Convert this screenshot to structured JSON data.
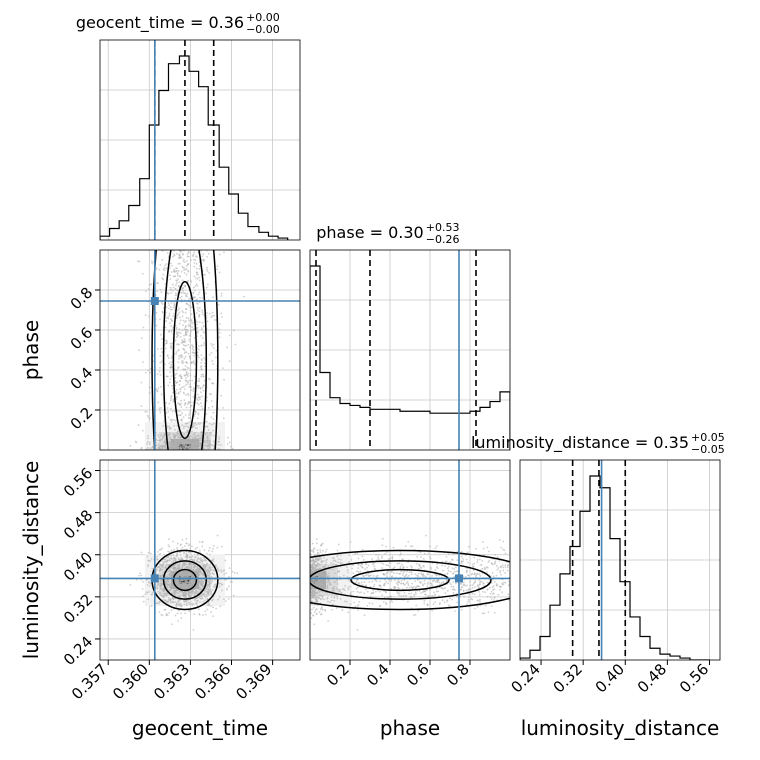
{
  "chart_data": {
    "type": "scatter",
    "subtype": "corner-plot",
    "params": [
      "geocent_time",
      "phase",
      "luminosity_distance"
    ],
    "axis_labels": {
      "geocent_time": "geocent_time",
      "phase": "phase",
      "luminosity_distance": "luminosity_distance"
    },
    "ranges": {
      "geocent_time": [
        0.3564,
        0.371
      ],
      "phase": [
        0.0,
        1.0
      ],
      "luminosity_distance": [
        0.2,
        0.58
      ]
    },
    "ticks": {
      "geocent_time": [
        0.357,
        0.36,
        0.363,
        0.366,
        0.369
      ],
      "phase": [
        0.2,
        0.4,
        0.6,
        0.8
      ],
      "luminosity_distance": [
        0.24,
        0.32,
        0.4,
        0.48,
        0.56
      ]
    },
    "tick_labels": {
      "geocent_time": [
        "0.357",
        "0.360",
        "0.363",
        "0.366",
        "0.369"
      ],
      "phase": [
        "0.2",
        "0.4",
        "0.6",
        "0.8"
      ],
      "luminosity_distance": [
        "0.24",
        "0.32",
        "0.40",
        "0.48",
        "0.56"
      ]
    },
    "injection": {
      "geocent_time": 0.3604,
      "phase": 0.745,
      "luminosity_distance": 0.355
    },
    "quantiles": {
      "geocent_time": [
        0.3604,
        0.3626,
        0.3647
      ],
      "phase": [
        0.03,
        0.3,
        0.83
      ],
      "luminosity_distance": [
        0.3,
        0.35,
        0.4
      ]
    },
    "histograms": {
      "geocent_time": {
        "edges": [
          0.3564,
          0.3571,
          0.3578,
          0.3585,
          0.3593,
          0.36,
          0.3607,
          0.3614,
          0.3622,
          0.3629,
          0.3636,
          0.3643,
          0.3651,
          0.3658,
          0.3665,
          0.3672,
          0.368,
          0.3687,
          0.3694,
          0.3701
        ],
        "counts": [
          2,
          6,
          10,
          18,
          32,
          60,
          78,
          92,
          96,
          88,
          80,
          60,
          38,
          24,
          14,
          7,
          4,
          2,
          1
        ]
      },
      "phase": {
        "edges": [
          0.0,
          0.05,
          0.1,
          0.15,
          0.2,
          0.25,
          0.3,
          0.35,
          0.4,
          0.45,
          0.5,
          0.55,
          0.6,
          0.65,
          0.7,
          0.75,
          0.8,
          0.85,
          0.9,
          0.95,
          1.0
        ],
        "counts": [
          95,
          40,
          27,
          24,
          23,
          22,
          21,
          21,
          21,
          20,
          20,
          20,
          19,
          19,
          19,
          19,
          20,
          22,
          25,
          30
        ]
      },
      "luminosity_distance": {
        "edges": [
          0.2,
          0.219,
          0.238,
          0.257,
          0.276,
          0.295,
          0.314,
          0.333,
          0.352,
          0.371,
          0.39,
          0.409,
          0.428,
          0.447,
          0.466,
          0.485,
          0.504,
          0.523,
          0.542,
          0.561
        ],
        "counts": [
          1,
          5,
          12,
          28,
          44,
          58,
          76,
          94,
          88,
          62,
          40,
          22,
          12,
          6,
          3,
          2,
          1,
          0,
          0
        ]
      }
    },
    "titles": [
      {
        "param": "geocent_time",
        "text": "geocent_time = 0.36",
        "plus": "+0.00",
        "minus": "−0.00"
      },
      {
        "param": "phase",
        "text": "phase = 0.30",
        "plus": "+0.53",
        "minus": "−0.26"
      },
      {
        "param": "luminosity_distance",
        "text": "luminosity_distance = 0.35",
        "plus": "+0.05",
        "minus": "−0.05"
      }
    ],
    "grid": true,
    "colors": {
      "truth": "#4682b4",
      "contour": "#000000",
      "points": "#b0b0b0",
      "grid": "#c8c8c8"
    }
  }
}
